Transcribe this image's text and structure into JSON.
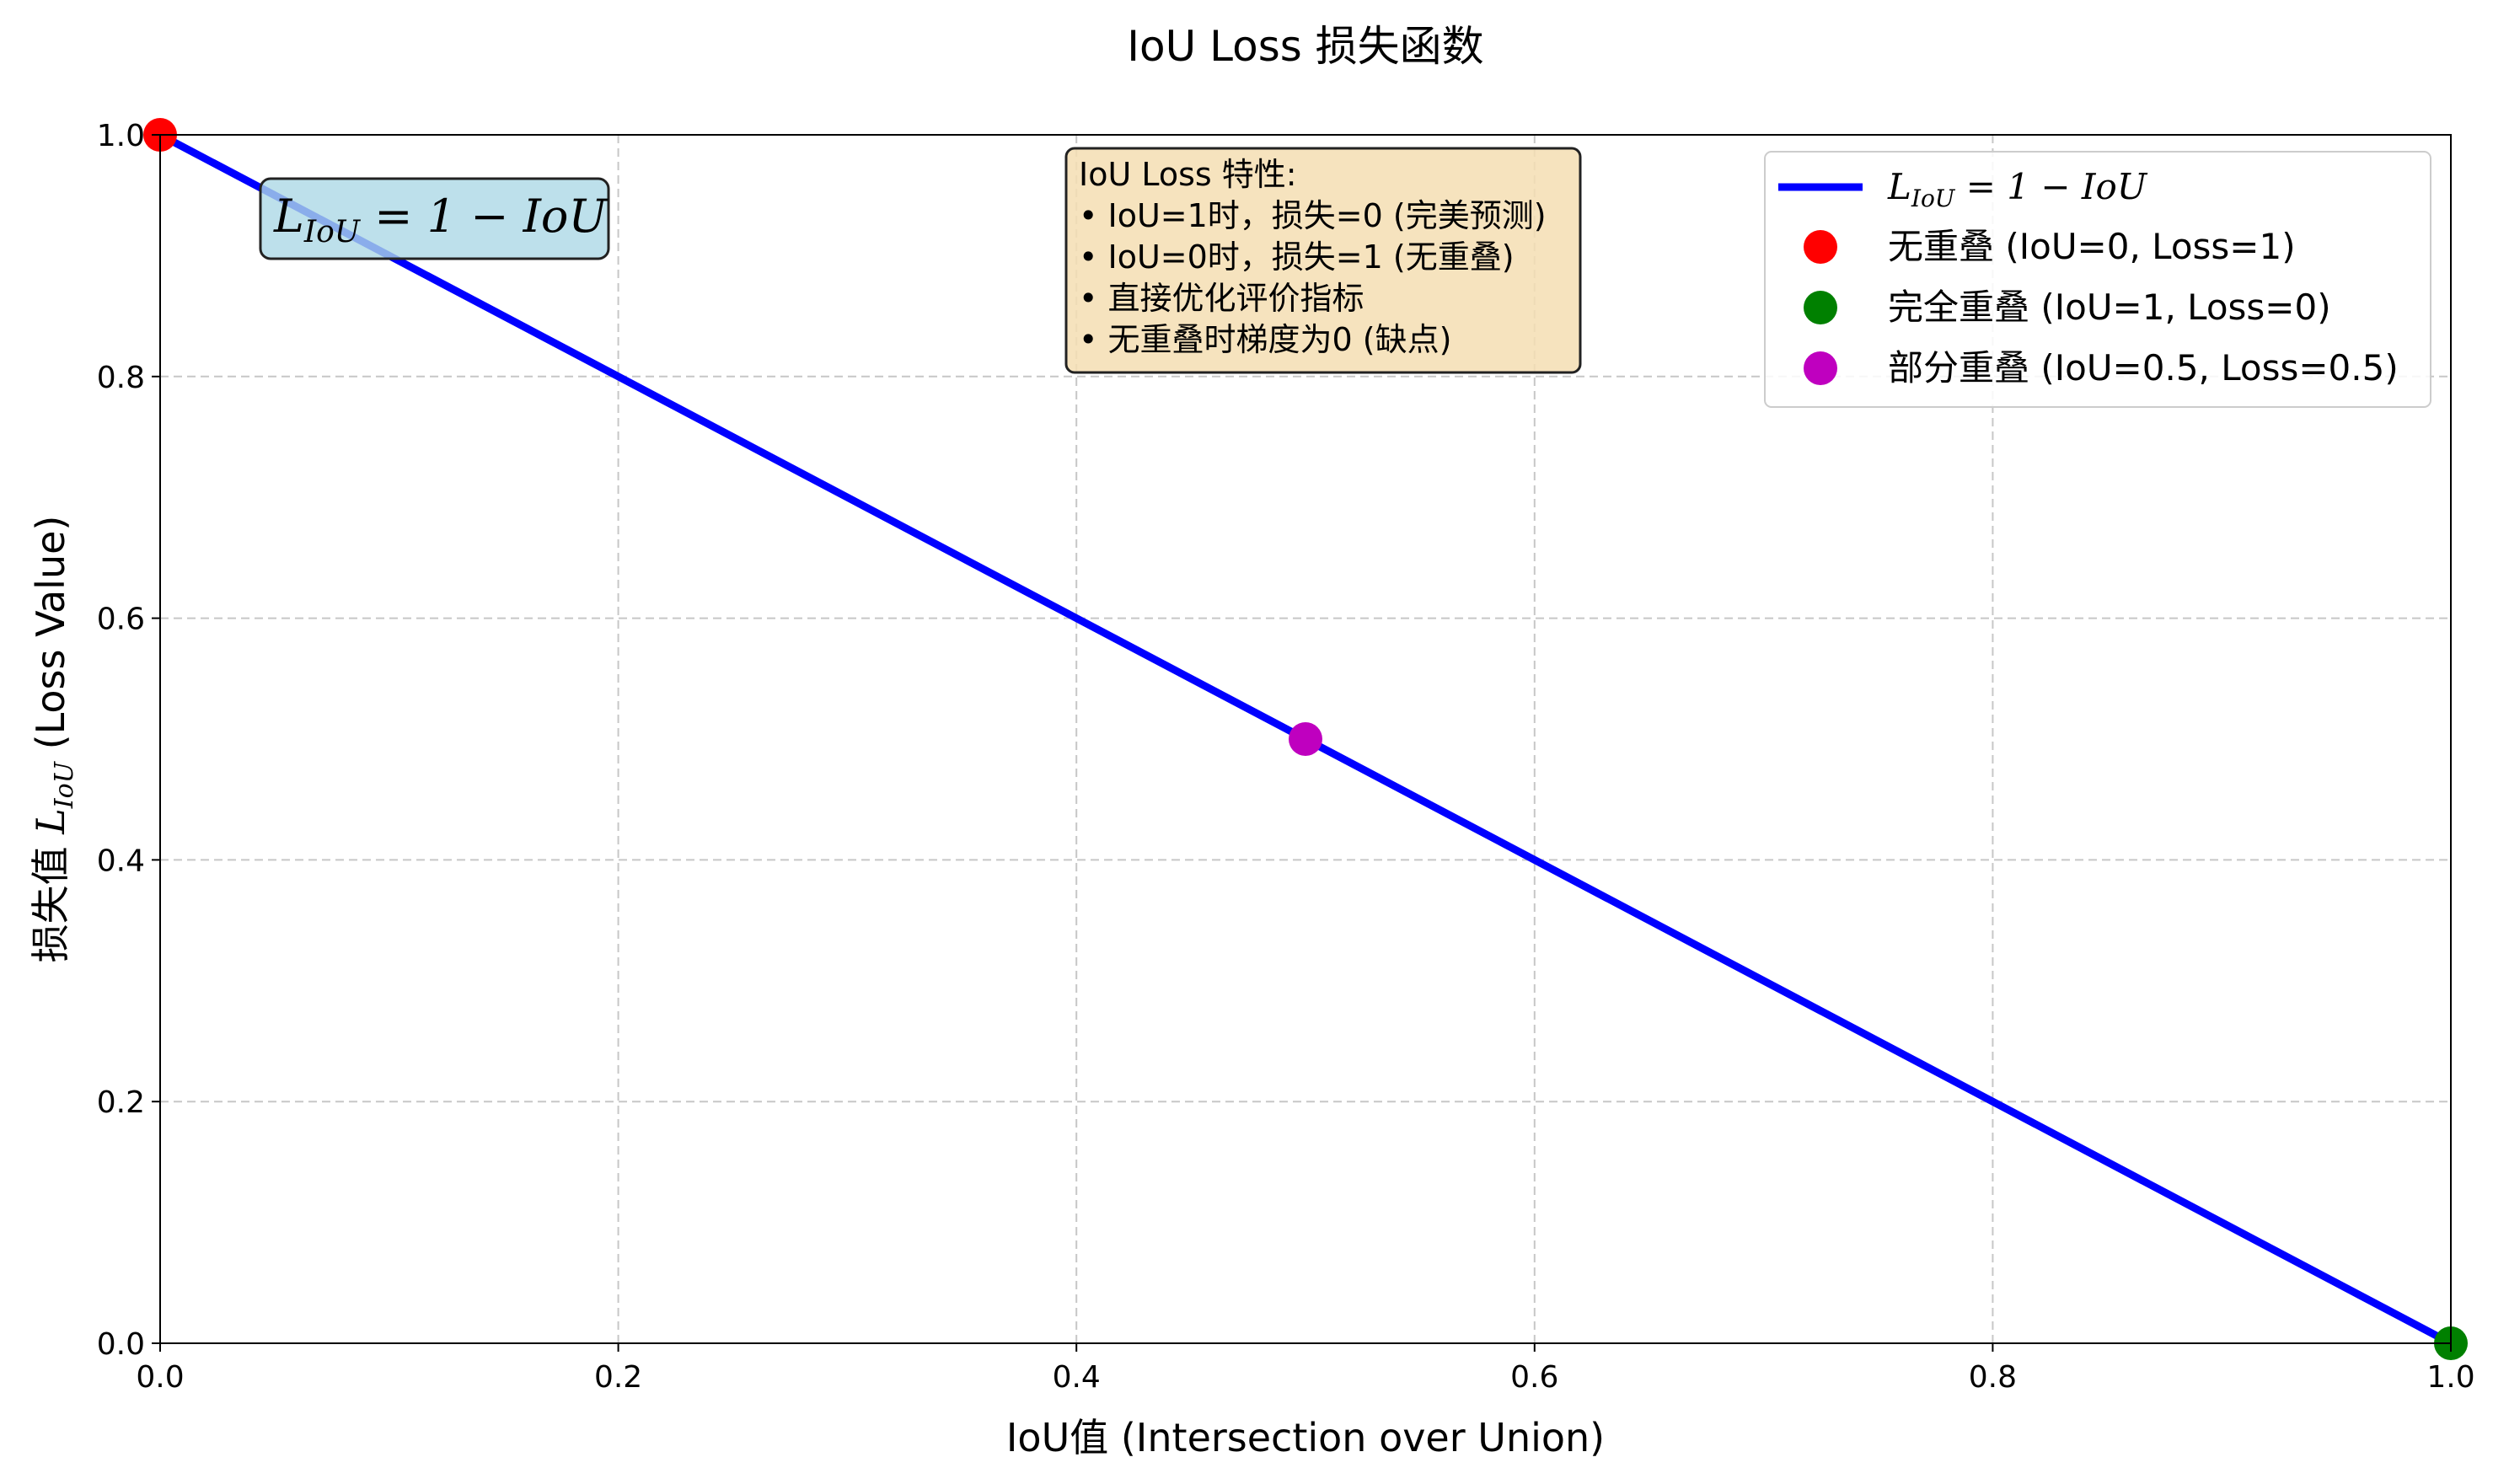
{
  "chart_data": {
    "type": "line",
    "title": "IoU Loss 损失函数",
    "xlabel": "IoU值 (Intersection over Union)",
    "ylabel_prefix": "损失值 ",
    "ylabel_math_main": "L",
    "ylabel_math_sub": "IoU",
    "ylabel_suffix": " (Loss Value)",
    "xlim": [
      0,
      1
    ],
    "ylim": [
      0,
      1
    ],
    "xticks": [
      "0.0",
      "0.2",
      "0.4",
      "0.6",
      "0.8",
      "1.0"
    ],
    "yticks": [
      "0.0",
      "0.2",
      "0.4",
      "0.6",
      "0.8",
      "1.0"
    ],
    "grid": true,
    "series": [
      {
        "name_main": "L",
        "name_sub": "IoU",
        "name_rest": " = 1 − IoU",
        "x": [
          0,
          1
        ],
        "y": [
          1,
          0
        ],
        "color": "#0000ff"
      }
    ],
    "points": [
      {
        "label": "无重叠 (IoU=0, Loss=1)",
        "x": 0,
        "y": 1,
        "color": "#ff0000"
      },
      {
        "label": "完全重叠 (IoU=1, Loss=0)",
        "x": 1,
        "y": 0,
        "color": "#008000"
      },
      {
        "label": "部分重叠 (IoU=0.5, Loss=0.5)",
        "x": 0.5,
        "y": 0.5,
        "color": "#bf00bf"
      }
    ],
    "formula_box": {
      "main": "L",
      "sub": "IoU",
      "rest": " = 1 − IoU",
      "bg": "#add8e6"
    },
    "notes_box": {
      "lines": [
        "IoU Loss 特性:",
        "• IoU=1时，损失=0 (完美预测)",
        "• IoU=0时，损失=1 (无重叠)",
        "• 直接优化评价指标",
        "• 无重叠时梯度为0 (缺点)"
      ],
      "bg": "#f5deb3"
    },
    "legend_position": "upper right"
  }
}
